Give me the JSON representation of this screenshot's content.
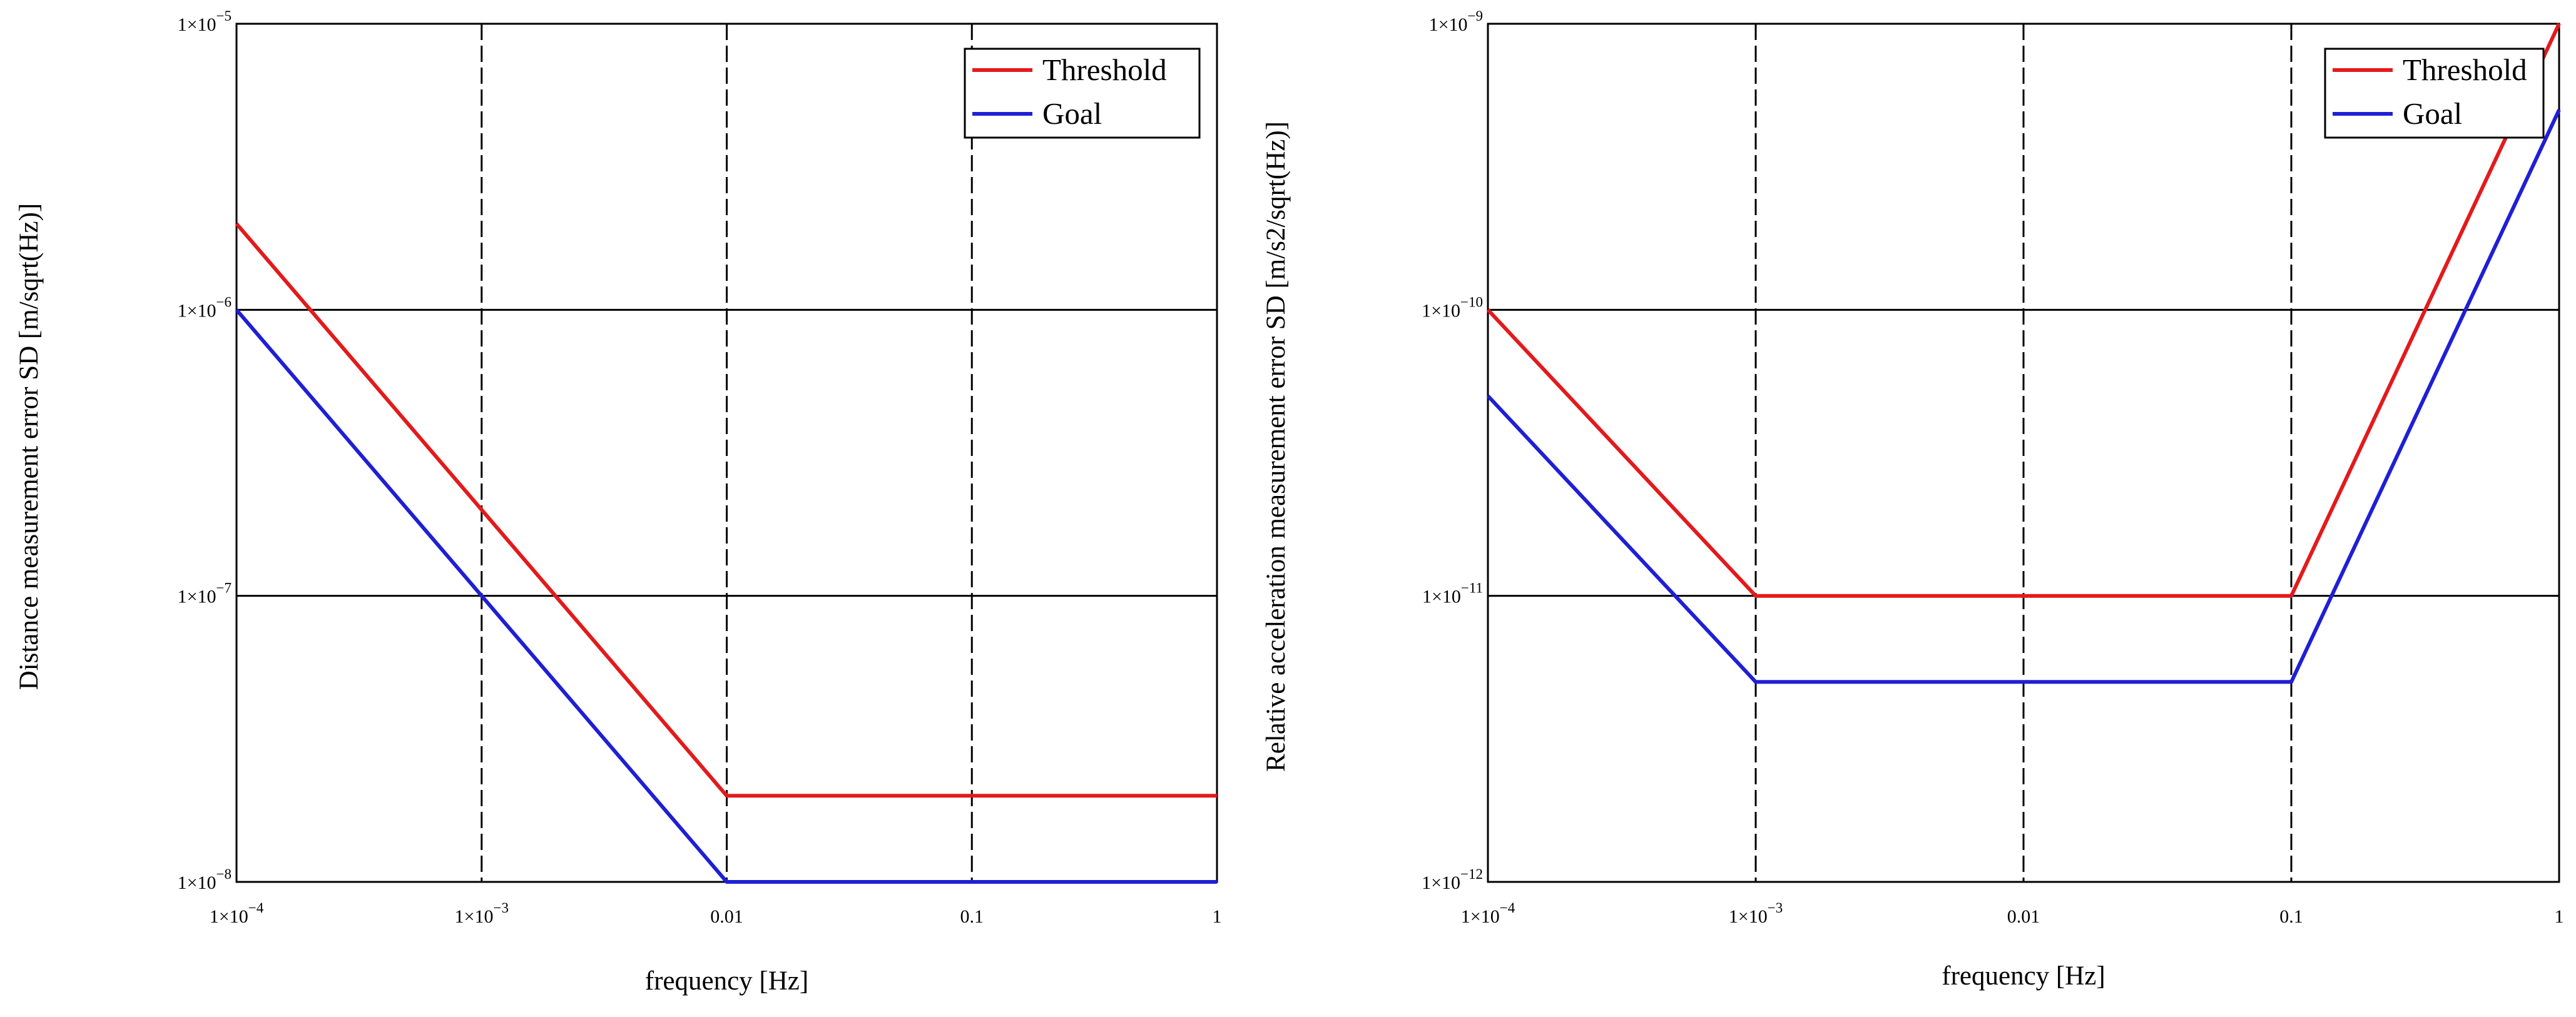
{
  "chart_data": [
    {
      "type": "line",
      "id": "left",
      "xscale": "log",
      "yscale": "log",
      "xlim": [
        0.0001,
        1
      ],
      "ylim": [
        1e-08,
        1e-05
      ],
      "xlabel": "frequency [Hz]",
      "ylabel": "Distance measurement error SD [m/sqrt(Hz)]",
      "xticks": [
        {
          "value": 0.0001,
          "base": "1×10",
          "exp": "−4"
        },
        {
          "value": 0.001,
          "base": "1×10",
          "exp": "−3"
        },
        {
          "value": 0.01,
          "base": "0.01",
          "exp": ""
        },
        {
          "value": 0.1,
          "base": "0.1",
          "exp": ""
        },
        {
          "value": 1,
          "base": "1",
          "exp": ""
        }
      ],
      "yticks": [
        {
          "value": 1e-05,
          "base": "1×10",
          "exp": "−5"
        },
        {
          "value": 1e-06,
          "base": "1×10",
          "exp": "−6"
        },
        {
          "value": 1e-07,
          "base": "1×10",
          "exp": "−7"
        },
        {
          "value": 1e-08,
          "base": "1×10",
          "exp": "−8"
        }
      ],
      "legend_position": "top-right",
      "series": [
        {
          "name": "Threshold",
          "color": "#e31a1c",
          "points": [
            [
              0.0001,
              2e-06
            ],
            [
              0.01,
              2e-08
            ],
            [
              1,
              2e-08
            ]
          ]
        },
        {
          "name": "Goal",
          "color": "#1f1fd6",
          "points": [
            [
              0.0001,
              1e-06
            ],
            [
              0.01,
              1e-08
            ],
            [
              1,
              1e-08
            ]
          ]
        }
      ]
    },
    {
      "type": "line",
      "id": "right",
      "xscale": "log",
      "yscale": "log",
      "xlim": [
        0.0001,
        1
      ],
      "ylim": [
        1e-12,
        1e-09
      ],
      "xlabel": "frequency [Hz]",
      "ylabel": "Relative acceleration measurement error SD [m/s2/sqrt(Hz)]",
      "xticks": [
        {
          "value": 0.0001,
          "base": "1×10",
          "exp": "−4"
        },
        {
          "value": 0.001,
          "base": "1×10",
          "exp": "−3"
        },
        {
          "value": 0.01,
          "base": "0.01",
          "exp": ""
        },
        {
          "value": 0.1,
          "base": "0.1",
          "exp": ""
        },
        {
          "value": 1,
          "base": "1",
          "exp": ""
        }
      ],
      "yticks": [
        {
          "value": 1e-09,
          "base": "1×10",
          "exp": "−9"
        },
        {
          "value": 1e-10,
          "base": "1×10",
          "exp": "−10"
        },
        {
          "value": 1e-11,
          "base": "1×10",
          "exp": "−11"
        },
        {
          "value": 1e-12,
          "base": "1×10",
          "exp": "−12"
        }
      ],
      "legend_position": "top-right",
      "series": [
        {
          "name": "Threshold",
          "color": "#e31a1c",
          "points": [
            [
              0.0001,
              1e-10
            ],
            [
              0.001,
              1e-11
            ],
            [
              0.1,
              1e-11
            ],
            [
              1,
              1e-09
            ]
          ]
        },
        {
          "name": "Goal",
          "color": "#1f1fd6",
          "points": [
            [
              0.0001,
              5e-11
            ],
            [
              0.001,
              5e-12
            ],
            [
              0.1,
              5e-12
            ],
            [
              1,
              5e-10
            ]
          ]
        }
      ]
    }
  ]
}
